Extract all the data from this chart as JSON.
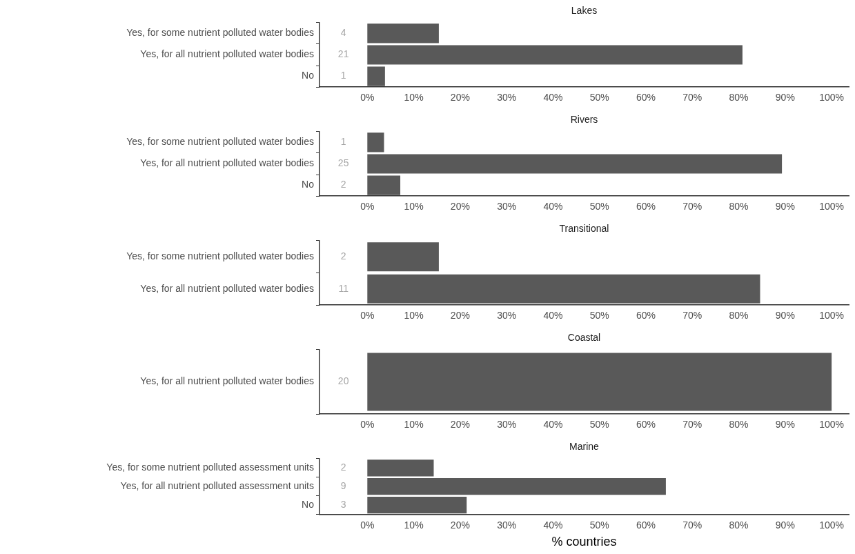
{
  "chart_data": [
    {
      "type": "bar",
      "orientation": "horizontal",
      "title": "Lakes",
      "categories": [
        "Yes, for some nutrient polluted water bodies",
        "Yes, for all nutrient polluted water bodies",
        "No"
      ],
      "values": [
        15.4,
        80.8,
        3.8
      ],
      "color": "#595959",
      "xlim": [
        -10.3,
        103.7
      ],
      "xticks": [
        {
          "value": 0,
          "label": "0%"
        },
        {
          "value": 10,
          "label": "10%"
        },
        {
          "value": 20,
          "label": "20%"
        },
        {
          "value": 30,
          "label": "30%"
        },
        {
          "value": 40,
          "label": "40%"
        },
        {
          "value": 50,
          "label": "50%"
        },
        {
          "value": 60,
          "label": "60%"
        },
        {
          "value": 70,
          "label": "70%"
        },
        {
          "value": 80,
          "label": "80%"
        },
        {
          "value": 90,
          "label": "90%"
        },
        {
          "value": 100,
          "label": "100%"
        }
      ],
      "grid": false,
      "legend": false,
      "annotations": [
        "4",
        "21",
        "1"
      ]
    },
    {
      "type": "bar",
      "orientation": "horizontal",
      "title": "Rivers",
      "categories": [
        "Yes, for some nutrient polluted water bodies",
        "Yes, for all nutrient polluted water bodies",
        "No"
      ],
      "values": [
        3.6,
        89.3,
        7.1
      ],
      "color": "#595959",
      "xlim": [
        -10.3,
        103.7
      ],
      "xticks": [
        {
          "value": 0,
          "label": "0%"
        },
        {
          "value": 10,
          "label": "10%"
        },
        {
          "value": 20,
          "label": "20%"
        },
        {
          "value": 30,
          "label": "30%"
        },
        {
          "value": 40,
          "label": "40%"
        },
        {
          "value": 50,
          "label": "50%"
        },
        {
          "value": 60,
          "label": "60%"
        },
        {
          "value": 70,
          "label": "70%"
        },
        {
          "value": 80,
          "label": "80%"
        },
        {
          "value": 90,
          "label": "90%"
        },
        {
          "value": 100,
          "label": "100%"
        }
      ],
      "grid": false,
      "legend": false,
      "annotations": [
        "1",
        "25",
        "2"
      ]
    },
    {
      "type": "bar",
      "orientation": "horizontal",
      "title": "Transitional",
      "categories": [
        "Yes, for some nutrient polluted water bodies",
        "Yes, for all nutrient polluted water bodies"
      ],
      "values": [
        15.4,
        84.6
      ],
      "color": "#595959",
      "xlim": [
        -10.3,
        103.7
      ],
      "xticks": [
        {
          "value": 0,
          "label": "0%"
        },
        {
          "value": 10,
          "label": "10%"
        },
        {
          "value": 20,
          "label": "20%"
        },
        {
          "value": 30,
          "label": "30%"
        },
        {
          "value": 40,
          "label": "40%"
        },
        {
          "value": 50,
          "label": "50%"
        },
        {
          "value": 60,
          "label": "60%"
        },
        {
          "value": 70,
          "label": "70%"
        },
        {
          "value": 80,
          "label": "80%"
        },
        {
          "value": 90,
          "label": "90%"
        },
        {
          "value": 100,
          "label": "100%"
        }
      ],
      "grid": false,
      "legend": false,
      "annotations": [
        "2",
        "11"
      ]
    },
    {
      "type": "bar",
      "orientation": "horizontal",
      "title": "Coastal",
      "categories": [
        "Yes, for all nutrient polluted water bodies"
      ],
      "values": [
        100
      ],
      "color": "#595959",
      "xlim": [
        -10.3,
        103.7
      ],
      "xticks": [
        {
          "value": 0,
          "label": "0%"
        },
        {
          "value": 10,
          "label": "10%"
        },
        {
          "value": 20,
          "label": "20%"
        },
        {
          "value": 30,
          "label": "30%"
        },
        {
          "value": 40,
          "label": "40%"
        },
        {
          "value": 50,
          "label": "50%"
        },
        {
          "value": 60,
          "label": "60%"
        },
        {
          "value": 70,
          "label": "70%"
        },
        {
          "value": 80,
          "label": "80%"
        },
        {
          "value": 90,
          "label": "90%"
        },
        {
          "value": 100,
          "label": "100%"
        }
      ],
      "grid": false,
      "legend": false,
      "annotations": [
        "20"
      ]
    },
    {
      "type": "bar",
      "orientation": "horizontal",
      "title": "Marine",
      "xlabel": "% countries",
      "categories": [
        "Yes, for some nutrient polluted assessment units",
        "Yes, for all nutrient polluted assessment units",
        "No"
      ],
      "values": [
        14.3,
        64.3,
        21.4
      ],
      "color": "#595959",
      "xlim": [
        -10.3,
        103.7
      ],
      "xticks": [
        {
          "value": 0,
          "label": "0%"
        },
        {
          "value": 10,
          "label": "10%"
        },
        {
          "value": 20,
          "label": "20%"
        },
        {
          "value": 30,
          "label": "30%"
        },
        {
          "value": 40,
          "label": "40%"
        },
        {
          "value": 50,
          "label": "50%"
        },
        {
          "value": 60,
          "label": "60%"
        },
        {
          "value": 70,
          "label": "70%"
        },
        {
          "value": 80,
          "label": "80%"
        },
        {
          "value": 90,
          "label": "90%"
        },
        {
          "value": 100,
          "label": "100%"
        }
      ],
      "grid": false,
      "legend": false,
      "annotations": [
        "2",
        "9",
        "3"
      ]
    }
  ]
}
